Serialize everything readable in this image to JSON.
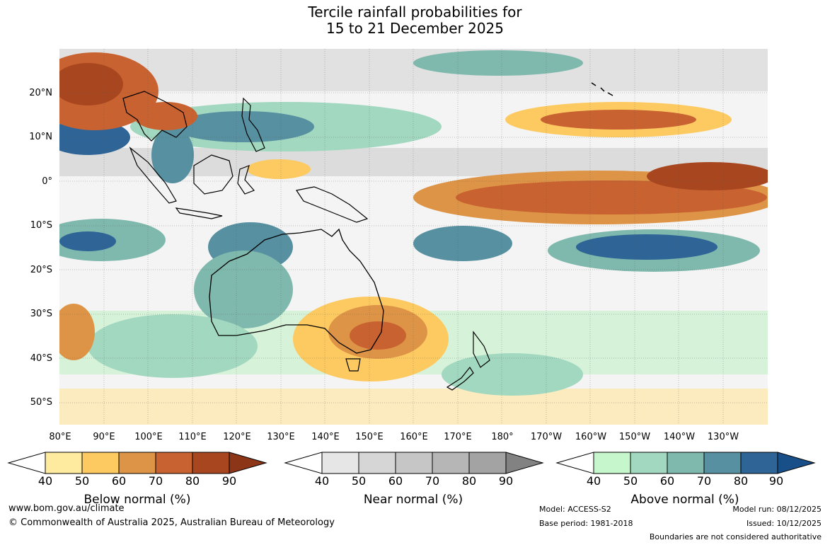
{
  "title": {
    "line1": "Tercile rainfall probabilities for",
    "line2": "15 to 21 December 2025"
  },
  "latitude_labels": [
    "20°N",
    "10°N",
    "0°",
    "10°S",
    "20°S",
    "30°S",
    "40°S",
    "50°S"
  ],
  "longitude_labels": [
    "80°E",
    "90°E",
    "100°E",
    "110°E",
    "120°E",
    "130°E",
    "140°E",
    "150°E",
    "160°E",
    "170°E",
    "180°",
    "170°W",
    "160°W",
    "150°W",
    "140°W",
    "130°W"
  ],
  "legends": [
    {
      "title": "Below normal (%)",
      "ticks": [
        "40",
        "50",
        "60",
        "70",
        "80",
        "90"
      ],
      "colors": [
        "#ffffff",
        "#ffeba0",
        "#fdca62",
        "#de9446",
        "#c96231",
        "#a8461f",
        "#8c3617"
      ]
    },
    {
      "title": "Near normal (%)",
      "ticks": [
        "40",
        "50",
        "60",
        "70",
        "80",
        "90"
      ],
      "colors": [
        "#ffffff",
        "#e6e6e6",
        "#d6d6d6",
        "#c6c6c6",
        "#b6b6b6",
        "#a3a3a3",
        "#828282"
      ]
    },
    {
      "title": "Above normal (%)",
      "ticks": [
        "40",
        "50",
        "60",
        "70",
        "80",
        "90"
      ],
      "colors": [
        "#ffffff",
        "#c6f7cc",
        "#a2d8c0",
        "#7fb8ac",
        "#5790a0",
        "#2f6497",
        "#184f88"
      ]
    }
  ],
  "footer": {
    "website": "www.bom.gov.au/climate",
    "copyright": "© Commonwealth of Australia 2025, Australian Bureau of Meteorology",
    "model": "Model: ACCESS-S2",
    "base_period": "Base period: 1981-2018",
    "model_run": "Model run: 08/12/2025",
    "issued": "Issued: 10/12/2025",
    "disclaimer": "Boundaries are not considered authoritative"
  }
}
